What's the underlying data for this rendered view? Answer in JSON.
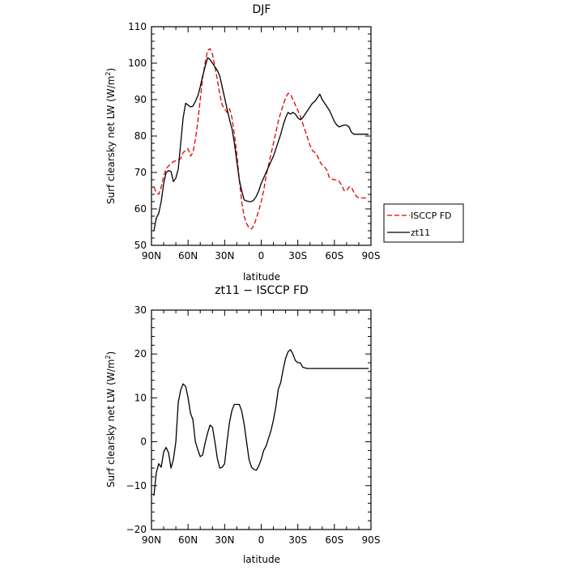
{
  "chart_data": [
    {
      "type": "line",
      "title": "DJF",
      "xlabel": "latitude",
      "ylabel": "Surf clearsky net LW (W/m²)",
      "ylabel_main": "Surf clearsky net LW (W/m",
      "ylabel_sup": "2",
      "ylabel_tail": ")",
      "xlim": [
        90,
        -90
      ],
      "ylim": [
        50,
        110
      ],
      "x_ticks": [
        90,
        60,
        30,
        0,
        -30,
        -60,
        -90
      ],
      "x_tick_labels": [
        "90N",
        "60N",
        "30N",
        "0",
        "30S",
        "60S",
        "90S"
      ],
      "y_ticks": [
        50,
        60,
        70,
        80,
        90,
        100,
        110
      ],
      "y_tick_labels": [
        "50",
        "60",
        "70",
        "80",
        "90",
        "100",
        "110"
      ],
      "legend_position": "right",
      "series": [
        {
          "name": "ISCCP FD",
          "color": "#e00000",
          "dash": "dashed",
          "x": [
            88,
            86,
            84,
            82,
            80,
            78,
            76,
            74,
            72,
            70,
            68,
            66,
            64,
            62,
            60,
            58,
            56,
            54,
            52,
            50,
            48,
            46,
            44,
            42,
            40,
            38,
            36,
            34,
            32,
            30,
            28,
            26,
            24,
            22,
            20,
            18,
            16,
            14,
            12,
            10,
            8,
            6,
            4,
            2,
            0,
            -2,
            -4,
            -6,
            -8,
            -10,
            -12,
            -14,
            -16,
            -18,
            -20,
            -22,
            -24,
            -26,
            -28,
            -30,
            -32,
            -34,
            -36,
            -38,
            -40,
            -42,
            -44,
            -46,
            -48,
            -50,
            -52,
            -54,
            -56,
            -58,
            -60,
            -62,
            -64,
            -66,
            -68,
            -70,
            -72,
            -74,
            -76,
            -78,
            -80,
            -82,
            -84,
            -86,
            -88
          ],
          "y": [
            66,
            64.5,
            64,
            66,
            69,
            71,
            71.8,
            72.5,
            73,
            73.2,
            73.4,
            73.8,
            75.5,
            76,
            76.5,
            74.5,
            75.5,
            79,
            84,
            90,
            96,
            100,
            103.5,
            104,
            102.5,
            99,
            95.5,
            91.5,
            88.5,
            87.5,
            86.5,
            87.5,
            85,
            80.5,
            75,
            68,
            62,
            58,
            56,
            54.8,
            54.5,
            55.5,
            57.5,
            59.5,
            62,
            65,
            69,
            72,
            75,
            78,
            81,
            84,
            86.5,
            88.5,
            90.5,
            91.7,
            91.5,
            90,
            88.5,
            87,
            85.5,
            83.5,
            81.5,
            79.5,
            77.5,
            76,
            75.5,
            74.5,
            73,
            72,
            71.5,
            70.5,
            68.5,
            68.2,
            68,
            68,
            67.5,
            66.5,
            65,
            65,
            66,
            66,
            64.5,
            63.5,
            63,
            63,
            63,
            63,
            63
          ]
        },
        {
          "name": "zt11",
          "color": "#000000",
          "dash": "solid",
          "x": [
            88,
            86,
            84,
            82,
            80,
            78,
            76,
            74,
            72,
            70,
            68,
            66,
            64,
            62,
            60,
            58,
            56,
            54,
            52,
            50,
            48,
            46,
            44,
            42,
            40,
            38,
            36,
            34,
            32,
            30,
            28,
            26,
            24,
            22,
            20,
            18,
            16,
            14,
            12,
            10,
            8,
            6,
            4,
            2,
            0,
            -2,
            -4,
            -6,
            -8,
            -10,
            -12,
            -14,
            -16,
            -18,
            -20,
            -22,
            -24,
            -26,
            -28,
            -30,
            -32,
            -34,
            -36,
            -38,
            -40,
            -42,
            -44,
            -46,
            -48,
            -50,
            -52,
            -54,
            -56,
            -58,
            -60,
            -62,
            -64,
            -66,
            -68,
            -70,
            -72,
            -74,
            -76,
            -78,
            -80,
            -82,
            -84,
            -86,
            -88
          ],
          "y": [
            54,
            57.5,
            58.8,
            62,
            67,
            70,
            70.5,
            70.3,
            67.5,
            68.5,
            71,
            78,
            85,
            89,
            88.5,
            88,
            88.2,
            89.5,
            91,
            93.5,
            96.5,
            99,
            101.5,
            101,
            100,
            99,
            98,
            96.5,
            93.5,
            90.5,
            87.5,
            84.5,
            82,
            78,
            73,
            68,
            65,
            62.5,
            62.2,
            62,
            62,
            62.5,
            63.5,
            65,
            67,
            68.5,
            70,
            71.5,
            73,
            74.5,
            76.5,
            78.5,
            80.5,
            83,
            85,
            86.5,
            86,
            86.5,
            86,
            85,
            84.5,
            85,
            86,
            87,
            88,
            89,
            89.5,
            90.5,
            91.5,
            90,
            89,
            88,
            87,
            85.5,
            84,
            83,
            82.5,
            82.8,
            83,
            83,
            82.5,
            81,
            80.5,
            80.5,
            80.5,
            80.5,
            80.5,
            80.5,
            80.5
          ]
        }
      ]
    },
    {
      "type": "line",
      "title": "zt11 − ISCCP FD",
      "xlabel": "latitude",
      "ylabel": "Surf clearsky net LW (W/m²)",
      "ylabel_main": "Surf clearsky net LW (W/m",
      "ylabel_sup": "2",
      "ylabel_tail": ")",
      "xlim": [
        90,
        -90
      ],
      "ylim": [
        -20,
        30
      ],
      "x_ticks": [
        90,
        60,
        30,
        0,
        -30,
        -60,
        -90
      ],
      "x_tick_labels": [
        "90N",
        "60N",
        "30N",
        "0",
        "30S",
        "60S",
        "90S"
      ],
      "y_ticks": [
        -20,
        -10,
        0,
        10,
        20,
        30
      ],
      "y_tick_labels": [
        "−20",
        "−10",
        "0",
        "10",
        "20",
        "30"
      ],
      "series": [
        {
          "color": "#000000",
          "dash": "solid",
          "x": [
            88,
            86,
            84,
            82,
            80,
            78,
            76,
            74,
            72,
            70,
            68,
            66,
            64,
            62,
            60,
            58,
            56,
            54,
            52,
            50,
            48,
            46,
            44,
            42,
            40,
            38,
            36,
            34,
            32,
            30,
            28,
            26,
            24,
            22,
            20,
            18,
            16,
            14,
            12,
            10,
            8,
            6,
            4,
            2,
            0,
            -2,
            -4,
            -6,
            -8,
            -10,
            -12,
            -14,
            -16,
            -18,
            -20,
            -22,
            -24,
            -26,
            -28,
            -30,
            -32,
            -34,
            -36,
            -38,
            -40,
            -42,
            -44,
            -46,
            -48,
            -50,
            -52,
            -54,
            -56,
            -58,
            -60,
            -62,
            -64,
            -66,
            -68,
            -70,
            -72,
            -74,
            -76,
            -78,
            -80,
            -82,
            -84,
            -86,
            -88
          ],
          "y": [
            -12.3,
            -7,
            -5,
            -5.8,
            -2.3,
            -1.3,
            -2.5,
            -6,
            -4,
            0,
            9,
            11.8,
            13.2,
            12.6,
            10,
            6.5,
            5,
            0,
            -1.8,
            -3.4,
            -3,
            -0.3,
            2,
            3.8,
            3.3,
            0,
            -3.8,
            -6,
            -5.8,
            -5,
            0,
            4.5,
            7.2,
            8.5,
            8.5,
            8.5,
            7,
            4,
            0,
            -4,
            -5.8,
            -6.3,
            -6.5,
            -5.5,
            -4,
            -2,
            -1,
            0.8,
            2.5,
            5,
            8,
            12,
            13.5,
            16.5,
            19,
            20.5,
            21,
            20,
            18.5,
            18,
            18,
            17,
            16.8,
            16.7,
            16.7,
            16.7,
            16.7,
            16.7,
            16.7,
            16.7,
            16.7,
            16.7,
            16.7,
            16.7,
            16.7,
            16.7,
            16.7,
            16.7,
            16.7,
            16.7,
            16.7,
            16.7,
            16.7,
            16.7,
            16.7,
            16.7,
            16.7,
            16.7,
            16.7
          ]
        }
      ]
    }
  ]
}
